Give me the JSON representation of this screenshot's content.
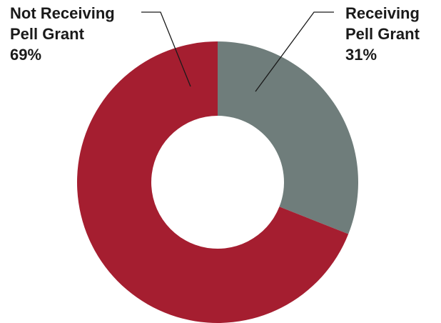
{
  "chart_data": {
    "type": "pie",
    "donut": true,
    "categories": [
      "Receiving Pell Grant",
      "Not Receiving Pell Grant"
    ],
    "values": [
      31,
      69
    ],
    "units": "%",
    "colors": [
      "#6f7d7b",
      "#a51e30"
    ],
    "labels": [
      {
        "line1": "Receiving",
        "line2": "Pell Grant",
        "pct": "31%"
      },
      {
        "line1": "Not Receiving",
        "line2": "Pell Grant",
        "pct": "69%"
      }
    ]
  }
}
